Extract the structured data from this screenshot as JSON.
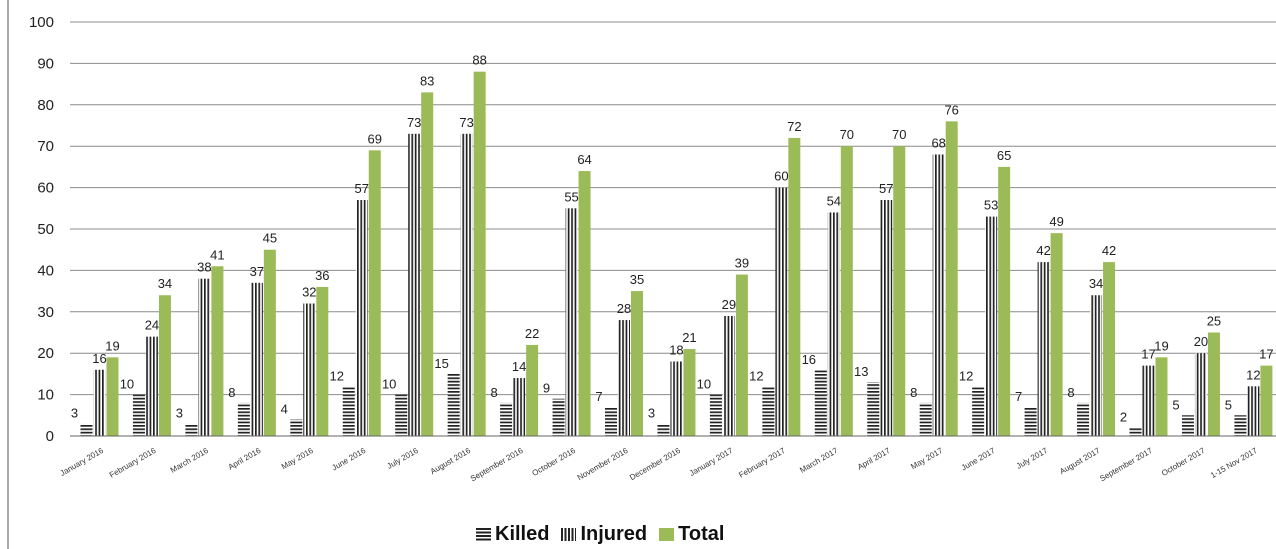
{
  "chart_data": {
    "type": "bar",
    "categories": [
      "January 2016",
      "February 2016",
      "March 2016",
      "April 2016",
      "May 2016",
      "June 2016",
      "July 2016",
      "August 2016",
      "September 2016",
      "October 2016",
      "November 2016",
      "December 2016",
      "January 2017",
      "February 2017",
      "March 2017",
      "April 2017",
      "May 2017",
      "June 2017",
      "July 2017",
      "August 2017",
      "September 2017",
      "October 2017",
      "1-15 Nov 2017"
    ],
    "series": [
      {
        "name": "Killed",
        "values": [
          3,
          10,
          3,
          8,
          4,
          12,
          10,
          15,
          8,
          9,
          7,
          3,
          10,
          12,
          16,
          13,
          8,
          12,
          7,
          8,
          2,
          5,
          5
        ]
      },
      {
        "name": "Injured",
        "values": [
          16,
          24,
          38,
          37,
          32,
          57,
          73,
          73,
          14,
          55,
          28,
          18,
          29,
          60,
          54,
          57,
          68,
          53,
          42,
          34,
          17,
          20,
          12
        ]
      },
      {
        "name": "Total",
        "values": [
          19,
          34,
          41,
          45,
          36,
          69,
          83,
          88,
          22,
          64,
          35,
          21,
          39,
          72,
          70,
          70,
          76,
          65,
          49,
          42,
          19,
          25,
          17
        ]
      }
    ],
    "ylim": [
      0,
      100
    ],
    "yticks": [
      "0",
      "10",
      "20",
      "30",
      "40",
      "50",
      "60",
      "70",
      "80",
      "90",
      "100"
    ],
    "grid": true,
    "legend": "bottom",
    "colors": {
      "killed": "#222222",
      "injured": "#222222",
      "total": "#9bbb59",
      "grid": "#8c8c8c"
    }
  }
}
